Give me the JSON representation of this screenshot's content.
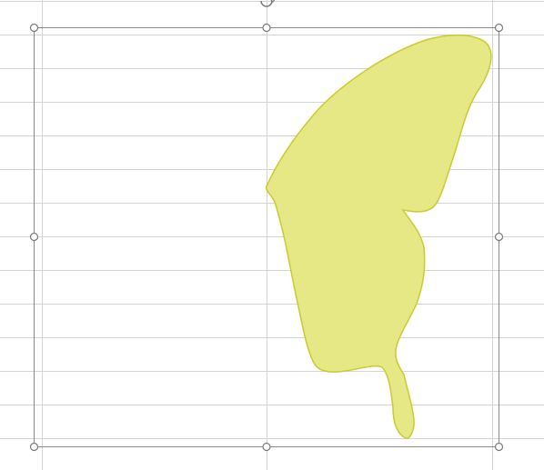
{
  "sheet": {
    "grid_color": "#d4d4d4",
    "background": "#ffffff"
  },
  "selection": {
    "frame_color": "#8c8c8c",
    "handle_fill": "#ffffff",
    "handle_stroke": "#7a7a7a",
    "rotate_icon": "rotate-handle-icon"
  },
  "shape": {
    "name": "freeform-wing-shape",
    "fill": "#e6e886",
    "stroke": "#c9cc2c"
  }
}
